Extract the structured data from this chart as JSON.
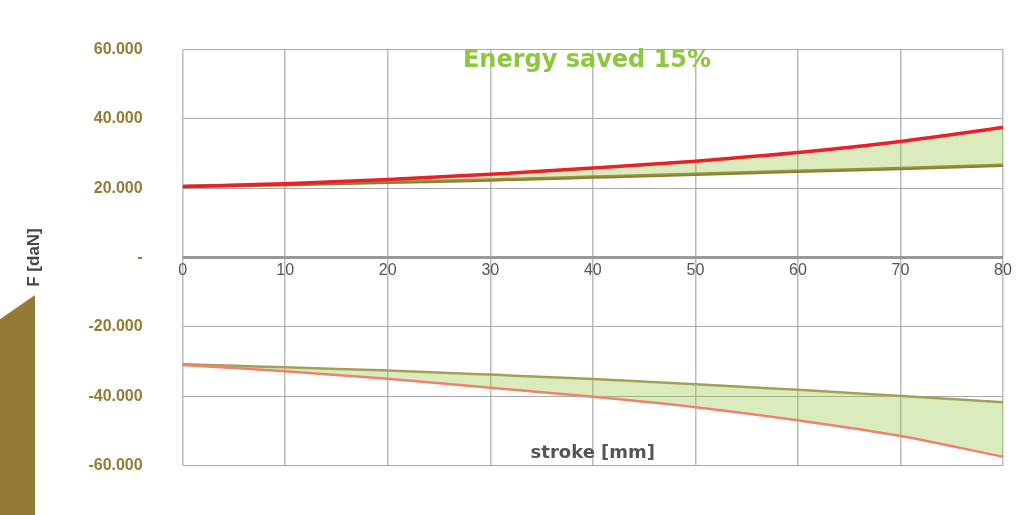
{
  "chart_data": {
    "type": "line",
    "ylabel": "F [daN]",
    "xlabel": "stroke [mm]",
    "annotations": [
      "Energy saved 15%"
    ],
    "x": [
      0,
      10,
      20,
      30,
      40,
      50,
      60,
      70,
      80
    ],
    "series": [
      {
        "color": "#a8965c",
        "values": [
          -30800,
          -31700,
          -32600,
          -33800,
          -35100,
          -36600,
          -38200,
          -40000,
          -41800
        ]
      },
      {
        "color": "#f08070",
        "values": [
          -31000,
          -32800,
          -35000,
          -37600,
          -40200,
          -43200,
          -47000,
          -51500,
          -57500
        ]
      },
      {
        "color": "#937a35",
        "values": [
          20500,
          21000,
          21700,
          22400,
          23200,
          24000,
          24900,
          25700,
          26600
        ]
      },
      {
        "color": "#e8202a",
        "values": [
          20500,
          21300,
          22500,
          24000,
          25800,
          27800,
          30300,
          33500,
          37500
        ]
      }
    ],
    "xlim": [
      0,
      80
    ],
    "xticks": [
      0,
      10,
      20,
      30,
      40,
      50,
      60,
      70,
      80
    ],
    "ylim": [
      -60000,
      60000
    ],
    "yticks": [
      {
        "value": -60000,
        "label": "-60.000"
      },
      {
        "value": -40000,
        "label": "-40.000"
      },
      {
        "value": -20000,
        "label": "-20.000"
      },
      {
        "value": 0,
        "label": "-"
      },
      {
        "value": 20000,
        "label": "20.000"
      },
      {
        "value": 40000,
        "label": "40.000"
      },
      {
        "value": 60000,
        "label": "60.000"
      }
    ],
    "grid": true,
    "marker": "none",
    "line_style": "solid",
    "legend": false
  }
}
